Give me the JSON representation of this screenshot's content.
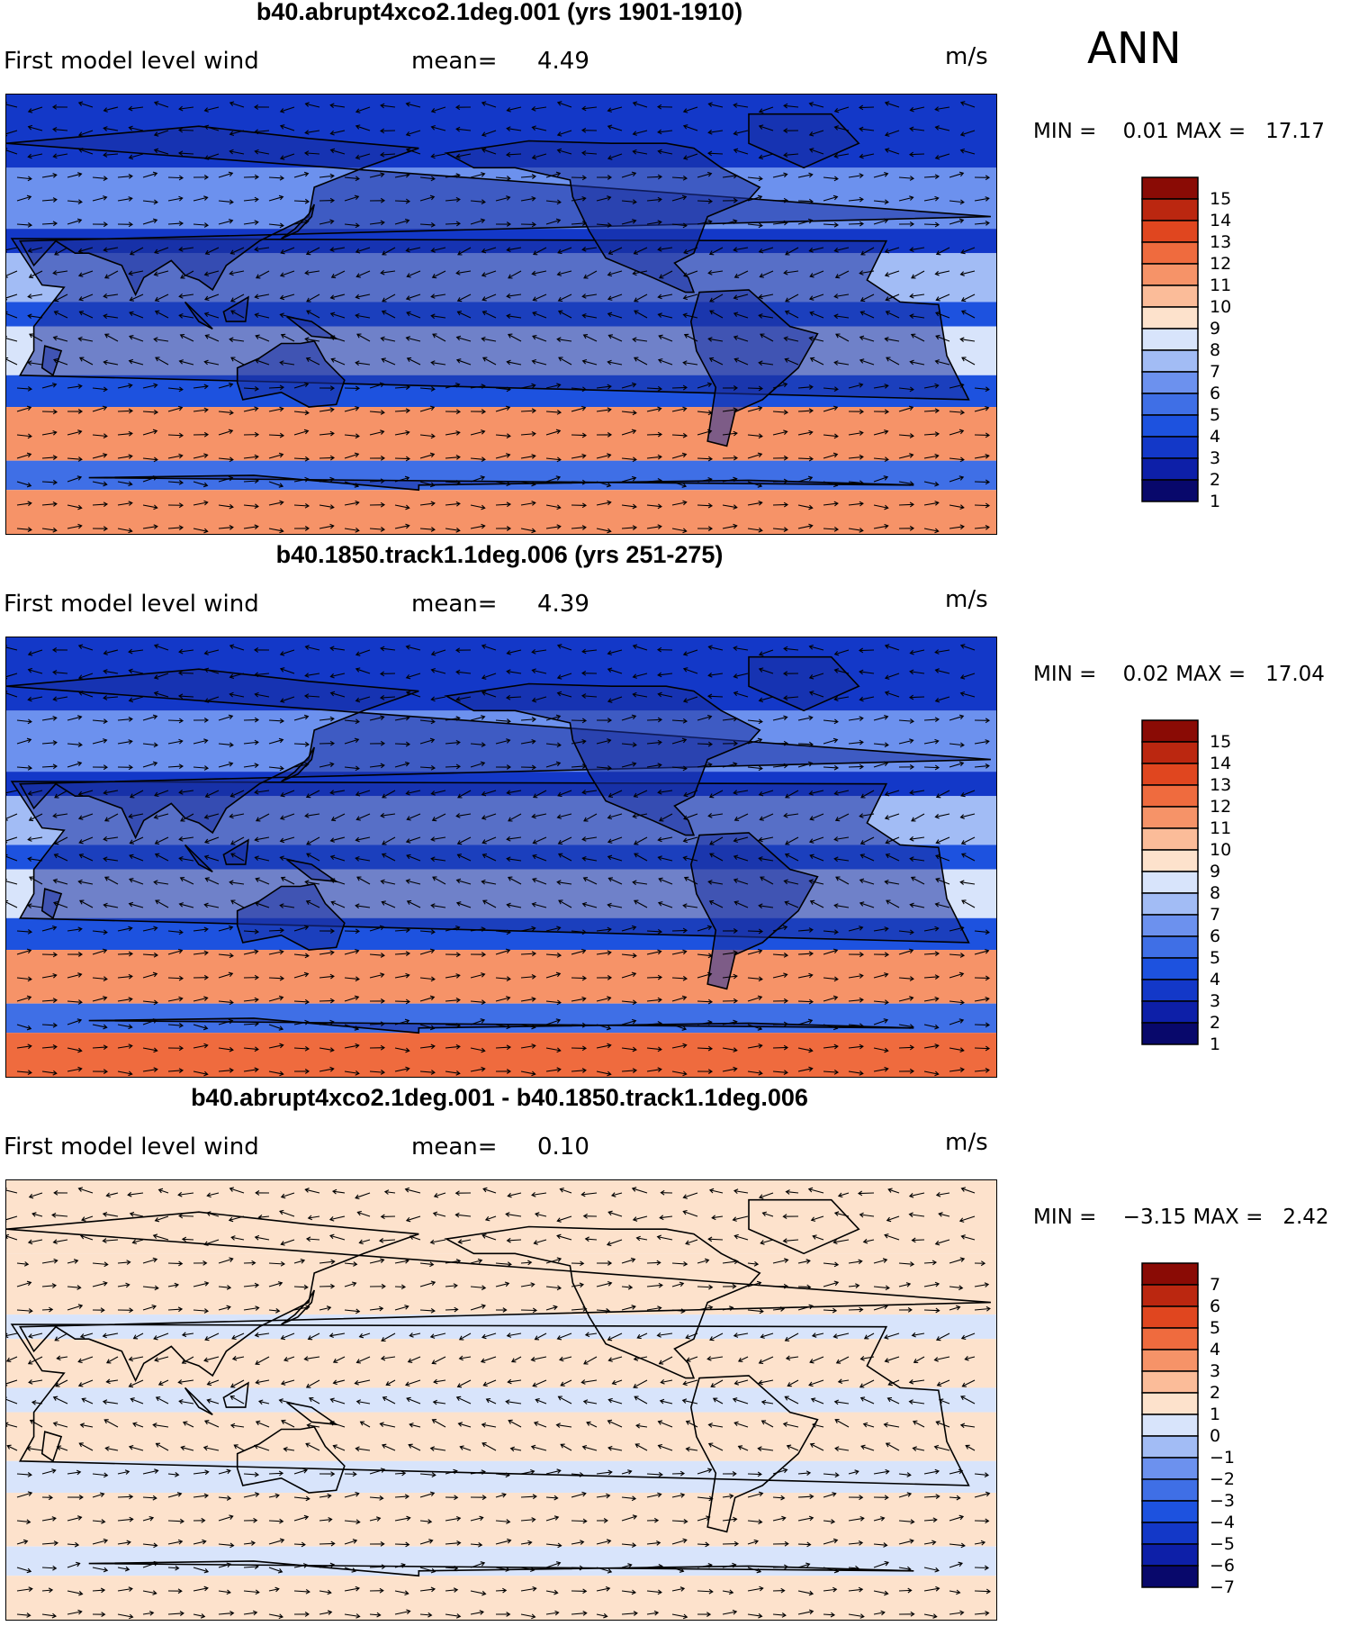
{
  "season": "ANN",
  "panels": [
    {
      "title": "b40.abrupt4xco2.1deg.001 (yrs 1901-1910)",
      "variable": "First model level wind",
      "mean_label": "mean=",
      "mean": "4.49",
      "units": "m/s",
      "min_label": "MIN =",
      "min": "0.01",
      "max_label": "MAX =",
      "max": "17.17",
      "colorbar_labels": [
        "15",
        "14",
        "13",
        "12",
        "11",
        "10",
        "9",
        "8",
        "7",
        "6",
        "5",
        "4",
        "3",
        "2",
        "1"
      ]
    },
    {
      "title": "b40.1850.track1.1deg.006 (yrs 251-275)",
      "variable": "First model level wind",
      "mean_label": "mean=",
      "mean": "4.39",
      "units": "m/s",
      "min_label": "MIN =",
      "min": "0.02",
      "max_label": "MAX =",
      "max": "17.04",
      "colorbar_labels": [
        "15",
        "14",
        "13",
        "12",
        "11",
        "10",
        "9",
        "8",
        "7",
        "6",
        "5",
        "4",
        "3",
        "2",
        "1"
      ]
    },
    {
      "title": "b40.abrupt4xco2.1deg.001 - b40.1850.track1.1deg.006",
      "variable": "First model level wind",
      "mean_label": "mean=",
      "mean": "0.10",
      "units": "m/s",
      "min_label": "MIN =",
      "min": "−3.15",
      "max_label": "MAX =",
      "max": "2.42",
      "colorbar_labels": [
        "7",
        "6",
        "5",
        "4",
        "3",
        "2",
        "1",
        "0",
        "−1",
        "−2",
        "−3",
        "−4",
        "−5",
        "−6",
        "−7"
      ]
    }
  ],
  "chart_data": [
    {
      "type": "heatmap",
      "title": "b40.abrupt4xco2.1deg.001 (yrs 1901-1910)",
      "field": "First model level wind speed with wind vectors",
      "units": "m/s",
      "mean": 4.49,
      "min": 0.01,
      "max": 17.17,
      "contour_levels": [
        1,
        2,
        3,
        4,
        5,
        6,
        7,
        8,
        9,
        10,
        11,
        12,
        13,
        14,
        15
      ],
      "zonal_bands": [
        {
          "lat_range": [
            60,
            90
          ],
          "speed": 3.0
        },
        {
          "lat_range": [
            35,
            60
          ],
          "speed": 5.5
        },
        {
          "lat_range": [
            25,
            35
          ],
          "speed": 3.0
        },
        {
          "lat_range": [
            5,
            25
          ],
          "speed": 7.0
        },
        {
          "lat_range": [
            -5,
            5
          ],
          "speed": 4.0
        },
        {
          "lat_range": [
            -25,
            -5
          ],
          "speed": 7.5
        },
        {
          "lat_range": [
            -38,
            -25
          ],
          "speed": 3.5
        },
        {
          "lat_range": [
            -60,
            -38
          ],
          "speed": 10.5
        },
        {
          "lat_range": [
            -72,
            -60
          ],
          "speed": 4.5
        },
        {
          "lat_range": [
            -90,
            -72
          ],
          "speed": 11.0
        }
      ],
      "colors": [
        "#08086b",
        "#0d1fa8",
        "#1338c8",
        "#1d52df",
        "#3f6fe6",
        "#6c91ee",
        "#a2bcf5",
        "#d8e4fb",
        "#fde2cc",
        "#fbbc99",
        "#f69368",
        "#ef6b3e",
        "#e0461f",
        "#bb2710",
        "#8a0b05"
      ]
    },
    {
      "type": "heatmap",
      "title": "b40.1850.track1.1deg.006 (yrs 251-275)",
      "field": "First model level wind speed with wind vectors",
      "units": "m/s",
      "mean": 4.39,
      "min": 0.02,
      "max": 17.04,
      "contour_levels": [
        1,
        2,
        3,
        4,
        5,
        6,
        7,
        8,
        9,
        10,
        11,
        12,
        13,
        14,
        15
      ],
      "zonal_bands": [
        {
          "lat_range": [
            60,
            90
          ],
          "speed": 3.0
        },
        {
          "lat_range": [
            35,
            60
          ],
          "speed": 5.3
        },
        {
          "lat_range": [
            25,
            35
          ],
          "speed": 3.0
        },
        {
          "lat_range": [
            5,
            25
          ],
          "speed": 6.8
        },
        {
          "lat_range": [
            -5,
            5
          ],
          "speed": 4.0
        },
        {
          "lat_range": [
            -25,
            -5
          ],
          "speed": 7.2
        },
        {
          "lat_range": [
            -38,
            -25
          ],
          "speed": 3.5
        },
        {
          "lat_range": [
            -60,
            -38
          ],
          "speed": 10.3
        },
        {
          "lat_range": [
            -72,
            -60
          ],
          "speed": 4.5
        },
        {
          "lat_range": [
            -90,
            -72
          ],
          "speed": 11.5
        }
      ],
      "colors": [
        "#08086b",
        "#0d1fa8",
        "#1338c8",
        "#1d52df",
        "#3f6fe6",
        "#6c91ee",
        "#a2bcf5",
        "#d8e4fb",
        "#fde2cc",
        "#fbbc99",
        "#f69368",
        "#ef6b3e",
        "#e0461f",
        "#bb2710",
        "#8a0b05"
      ]
    },
    {
      "type": "heatmap",
      "title": "b40.abrupt4xco2.1deg.001 - b40.1850.track1.1deg.006",
      "field": "First model level wind difference with vectors",
      "units": "m/s",
      "mean": 0.1,
      "min": -3.15,
      "max": 2.42,
      "contour_levels": [
        -7,
        -6,
        -5,
        -4,
        -3,
        -2,
        -1,
        0,
        1,
        2,
        3,
        4,
        5,
        6,
        7
      ],
      "zonal_bands": [
        {
          "lat_range": [
            60,
            90
          ],
          "speed": 0.4
        },
        {
          "lat_range": [
            35,
            60
          ],
          "speed": 0.3
        },
        {
          "lat_range": [
            25,
            35
          ],
          "speed": -0.3
        },
        {
          "lat_range": [
            5,
            25
          ],
          "speed": 0.4
        },
        {
          "lat_range": [
            -5,
            5
          ],
          "speed": -0.4
        },
        {
          "lat_range": [
            -25,
            -5
          ],
          "speed": 0.3
        },
        {
          "lat_range": [
            -38,
            -25
          ],
          "speed": -0.3
        },
        {
          "lat_range": [
            -60,
            -38
          ],
          "speed": 0.5
        },
        {
          "lat_range": [
            -72,
            -60
          ],
          "speed": -0.4
        },
        {
          "lat_range": [
            -90,
            -72
          ],
          "speed": 0.6
        }
      ],
      "colors": [
        "#08086b",
        "#0d1fa8",
        "#1338c8",
        "#1d52df",
        "#3f6fe6",
        "#6c91ee",
        "#a2bcf5",
        "#d8e4fb",
        "#fde2cc",
        "#fbbc99",
        "#f69368",
        "#ef6b3e",
        "#e0461f",
        "#bb2710",
        "#8a0b05"
      ]
    }
  ]
}
